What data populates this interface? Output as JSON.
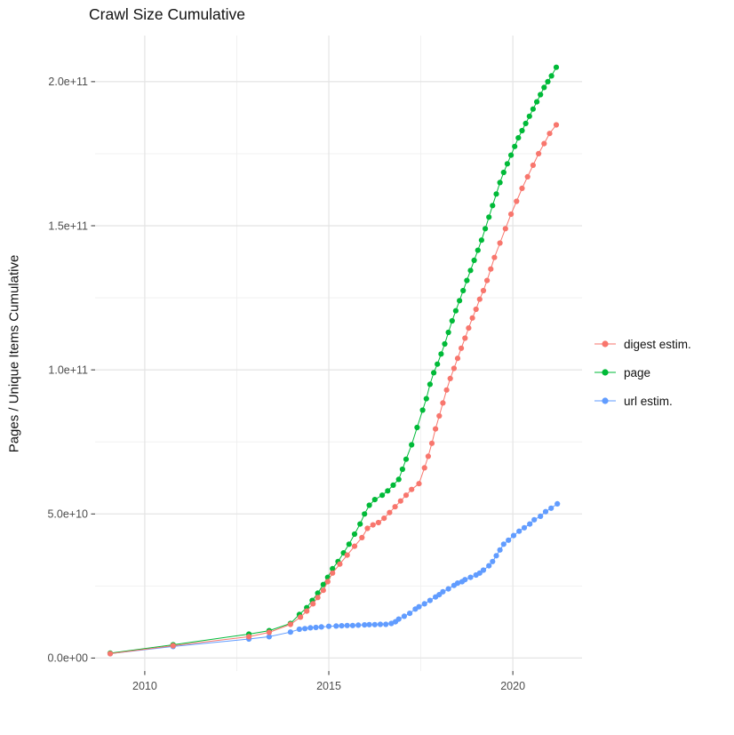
{
  "chart_data": {
    "type": "line",
    "title": "Crawl Size Cumulative",
    "xlabel": "",
    "ylabel": "Pages / Unique Items Cumulative",
    "legend_position": "right",
    "grid": true,
    "x_domain": [
      2008.65,
      2021.88
    ],
    "y_domain": [
      -4500000000.0,
      216000000000.0
    ],
    "x_ticks": [
      {
        "v": 2010,
        "label": "2010"
      },
      {
        "v": 2015,
        "label": "2015"
      },
      {
        "v": 2020,
        "label": "2020"
      }
    ],
    "x_minor": [
      2012.5,
      2017.5
    ],
    "y_ticks": [
      {
        "v": 0,
        "label": "0.0e+00"
      },
      {
        "v": 50000000000.0,
        "label": "5.0e+10"
      },
      {
        "v": 100000000000.0,
        "label": "1.0e+11"
      },
      {
        "v": 150000000000.0,
        "label": "1.5e+11"
      },
      {
        "v": 200000000000.0,
        "label": "2.0e+11"
      }
    ],
    "y_minor": [
      25000000000.0,
      75000000000.0,
      125000000000.0,
      175000000000.0
    ],
    "draw_order": [
      2,
      1,
      0
    ],
    "series": [
      {
        "name": "digest estim.",
        "color": "#F8766D",
        "points": [
          [
            2009.06,
            1500000000.0
          ],
          [
            2010.77,
            4300000000.0
          ],
          [
            2012.83,
            7400000000.0
          ],
          [
            2013.38,
            8900000000.0
          ],
          [
            2013.96,
            11700000000.0
          ],
          [
            2014.23,
            14200000000.0
          ],
          [
            2014.4,
            16300000000.0
          ],
          [
            2014.57,
            18800000000.0
          ],
          [
            2014.7,
            21000000000.0
          ],
          [
            2014.85,
            23500000000.0
          ],
          [
            2014.97,
            26500000000.0
          ],
          [
            2015.1,
            29500000000.0
          ],
          [
            2015.3,
            32600000000.0
          ],
          [
            2015.5,
            35700000000.0
          ],
          [
            2015.7,
            38800000000.0
          ],
          [
            2015.9,
            41800000000.0
          ],
          [
            2016.05,
            45000000000.0
          ],
          [
            2016.2,
            46200000000.0
          ],
          [
            2016.35,
            47000000000.0
          ],
          [
            2016.5,
            48500000000.0
          ],
          [
            2016.65,
            50500000000.0
          ],
          [
            2016.8,
            52500000000.0
          ],
          [
            2016.95,
            54500000000.0
          ],
          [
            2017.1,
            56500000000.0
          ],
          [
            2017.25,
            58500000000.0
          ],
          [
            2017.45,
            60500000000.0
          ],
          [
            2017.6,
            66000000000.0
          ],
          [
            2017.7,
            70000000000.0
          ],
          [
            2017.8,
            74500000000.0
          ],
          [
            2017.9,
            79500000000.0
          ],
          [
            2018.0,
            84000000000.0
          ],
          [
            2018.1,
            88500000000.0
          ],
          [
            2018.2,
            93000000000.0
          ],
          [
            2018.3,
            97000000000.0
          ],
          [
            2018.4,
            100500000000.0
          ],
          [
            2018.5,
            104000000000.0
          ],
          [
            2018.6,
            107500000000.0
          ],
          [
            2018.7,
            111000000000.0
          ],
          [
            2018.8,
            114500000000.0
          ],
          [
            2018.9,
            118000000000.0
          ],
          [
            2019.0,
            121000000000.0
          ],
          [
            2019.1,
            124500000000.0
          ],
          [
            2019.2,
            127500000000.0
          ],
          [
            2019.3,
            131000000000.0
          ],
          [
            2019.4,
            135000000000.0
          ],
          [
            2019.5,
            139000000000.0
          ],
          [
            2019.65,
            144000000000.0
          ],
          [
            2019.8,
            149000000000.0
          ],
          [
            2019.95,
            154000000000.0
          ],
          [
            2020.1,
            158500000000.0
          ],
          [
            2020.25,
            163000000000.0
          ],
          [
            2020.4,
            167000000000.0
          ],
          [
            2020.55,
            171000000000.0
          ],
          [
            2020.7,
            175000000000.0
          ],
          [
            2020.85,
            178500000000.0
          ],
          [
            2021.0,
            182000000000.0
          ],
          [
            2021.18,
            185000000000.0
          ]
        ]
      },
      {
        "name": "page",
        "color": "#00BA38",
        "points": [
          [
            2009.06,
            1700000000.0
          ],
          [
            2010.77,
            4600000000.0
          ],
          [
            2012.83,
            8300000000.0
          ],
          [
            2013.38,
            9500000000.0
          ],
          [
            2013.96,
            12000000000.0
          ],
          [
            2014.2,
            15100000000.0
          ],
          [
            2014.4,
            17500000000.0
          ],
          [
            2014.55,
            20000000000.0
          ],
          [
            2014.7,
            22500000000.0
          ],
          [
            2014.85,
            25500000000.0
          ],
          [
            2014.97,
            28000000000.0
          ],
          [
            2015.1,
            31000000000.0
          ],
          [
            2015.25,
            33500000000.0
          ],
          [
            2015.4,
            36500000000.0
          ],
          [
            2015.55,
            39500000000.0
          ],
          [
            2015.7,
            43000000000.0
          ],
          [
            2015.85,
            46500000000.0
          ],
          [
            2015.97,
            50000000000.0
          ],
          [
            2016.1,
            53000000000.0
          ],
          [
            2016.25,
            55000000000.0
          ],
          [
            2016.45,
            56500000000.0
          ],
          [
            2016.6,
            58000000000.0
          ],
          [
            2016.75,
            60000000000.0
          ],
          [
            2016.9,
            62000000000.0
          ],
          [
            2017.0,
            65500000000.0
          ],
          [
            2017.1,
            69000000000.0
          ],
          [
            2017.25,
            74000000000.0
          ],
          [
            2017.4,
            80000000000.0
          ],
          [
            2017.55,
            86000000000.0
          ],
          [
            2017.65,
            90000000000.0
          ],
          [
            2017.75,
            95000000000.0
          ],
          [
            2017.85,
            99000000000.0
          ],
          [
            2017.95,
            102000000000.0
          ],
          [
            2018.05,
            105500000000.0
          ],
          [
            2018.15,
            109000000000.0
          ],
          [
            2018.25,
            113000000000.0
          ],
          [
            2018.35,
            117000000000.0
          ],
          [
            2018.45,
            120500000000.0
          ],
          [
            2018.55,
            124000000000.0
          ],
          [
            2018.65,
            127500000000.0
          ],
          [
            2018.75,
            131000000000.0
          ],
          [
            2018.85,
            134500000000.0
          ],
          [
            2018.95,
            138000000000.0
          ],
          [
            2019.05,
            141500000000.0
          ],
          [
            2019.15,
            145000000000.0
          ],
          [
            2019.25,
            149000000000.0
          ],
          [
            2019.35,
            153000000000.0
          ],
          [
            2019.45,
            157000000000.0
          ],
          [
            2019.55,
            161000000000.0
          ],
          [
            2019.65,
            165000000000.0
          ],
          [
            2019.75,
            168500000000.0
          ],
          [
            2019.85,
            171500000000.0
          ],
          [
            2019.95,
            174500000000.0
          ],
          [
            2020.05,
            177500000000.0
          ],
          [
            2020.15,
            180500000000.0
          ],
          [
            2020.25,
            183000000000.0
          ],
          [
            2020.35,
            185500000000.0
          ],
          [
            2020.45,
            188000000000.0
          ],
          [
            2020.55,
            190500000000.0
          ],
          [
            2020.65,
            193000000000.0
          ],
          [
            2020.75,
            195500000000.0
          ],
          [
            2020.85,
            198000000000.0
          ],
          [
            2020.95,
            200000000000.0
          ],
          [
            2021.05,
            202000000000.0
          ],
          [
            2021.18,
            205000000000.0
          ]
        ]
      },
      {
        "name": "url estim.",
        "color": "#619CFF",
        "points": [
          [
            2009.06,
            1500000000.0
          ],
          [
            2010.77,
            4000000000.0
          ],
          [
            2012.83,
            6600000000.0
          ],
          [
            2013.38,
            7400000000.0
          ],
          [
            2013.96,
            9000000000.0
          ],
          [
            2014.2,
            10000000000.0
          ],
          [
            2014.35,
            10200000000.0
          ],
          [
            2014.5,
            10500000000.0
          ],
          [
            2014.65,
            10600000000.0
          ],
          [
            2014.8,
            10800000000.0
          ],
          [
            2015.0,
            11000000000.0
          ],
          [
            2015.2,
            11100000000.0
          ],
          [
            2015.35,
            11200000000.0
          ],
          [
            2015.5,
            11300000000.0
          ],
          [
            2015.65,
            11300000000.0
          ],
          [
            2015.8,
            11400000000.0
          ],
          [
            2015.97,
            11500000000.0
          ],
          [
            2016.1,
            11600000000.0
          ],
          [
            2016.25,
            11600000000.0
          ],
          [
            2016.4,
            11700000000.0
          ],
          [
            2016.55,
            11700000000.0
          ],
          [
            2016.7,
            12000000000.0
          ],
          [
            2016.81,
            12600000000.0
          ],
          [
            2016.9,
            13500000000.0
          ],
          [
            2017.05,
            14500000000.0
          ],
          [
            2017.2,
            15500000000.0
          ],
          [
            2017.35,
            17000000000.0
          ],
          [
            2017.45,
            17800000000.0
          ],
          [
            2017.6,
            18800000000.0
          ],
          [
            2017.75,
            20000000000.0
          ],
          [
            2017.9,
            21200000000.0
          ],
          [
            2018.0,
            22000000000.0
          ],
          [
            2018.1,
            23000000000.0
          ],
          [
            2018.25,
            24000000000.0
          ],
          [
            2018.4,
            25200000000.0
          ],
          [
            2018.5,
            26000000000.0
          ],
          [
            2018.62,
            26500000000.0
          ],
          [
            2018.7,
            27200000000.0
          ],
          [
            2018.85,
            28000000000.0
          ],
          [
            2019.0,
            28800000000.0
          ],
          [
            2019.1,
            29500000000.0
          ],
          [
            2019.2,
            30500000000.0
          ],
          [
            2019.35,
            32000000000.0
          ],
          [
            2019.45,
            33500000000.0
          ],
          [
            2019.55,
            35500000000.0
          ],
          [
            2019.65,
            37500000000.0
          ],
          [
            2019.75,
            39500000000.0
          ],
          [
            2019.88,
            40900000000.0
          ],
          [
            2020.02,
            42500000000.0
          ],
          [
            2020.17,
            44000000000.0
          ],
          [
            2020.31,
            45200000000.0
          ],
          [
            2020.46,
            46500000000.0
          ],
          [
            2020.58,
            48000000000.0
          ],
          [
            2020.75,
            49200000000.0
          ],
          [
            2020.89,
            50800000000.0
          ],
          [
            2021.04,
            52000000000.0
          ],
          [
            2021.21,
            53500000000.0
          ]
        ]
      }
    ]
  }
}
